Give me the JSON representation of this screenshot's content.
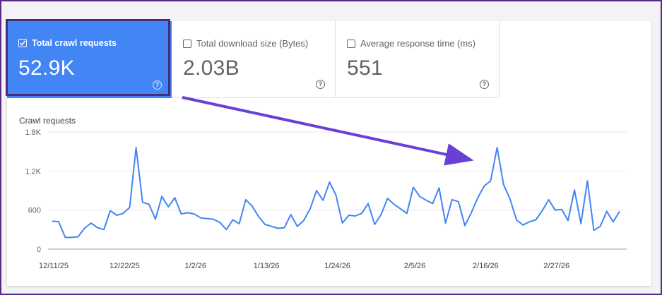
{
  "metrics": [
    {
      "label": "Total crawl requests",
      "value": "52.9K",
      "checked": true
    },
    {
      "label": "Total download size (Bytes)",
      "value": "2.03B",
      "checked": false
    },
    {
      "label": "Average response time (ms)",
      "value": "551",
      "checked": false
    }
  ],
  "help_glyph": "?",
  "colors": {
    "accent": "#4285f4",
    "annotation": "#6a3fd6",
    "frame": "#5b2a86"
  },
  "chart_data": {
    "type": "line",
    "title": "Crawl requests",
    "ylim": [
      0,
      1800
    ],
    "y_ticks": [
      {
        "value": 0,
        "label": "0"
      },
      {
        "value": 600,
        "label": "600"
      },
      {
        "value": 1200,
        "label": "1.2K"
      },
      {
        "value": 1800,
        "label": "1.8K"
      }
    ],
    "x_ticks": [
      {
        "index": 0,
        "label": "12/11/25"
      },
      {
        "index": 11,
        "label": "12/22/25"
      },
      {
        "index": 22,
        "label": "1/2/26"
      },
      {
        "index": 33,
        "label": "1/13/26"
      },
      {
        "index": 44,
        "label": "1/24/26"
      },
      {
        "index": 56,
        "label": "2/5/26"
      },
      {
        "index": 67,
        "label": "2/16/26"
      },
      {
        "index": 78,
        "label": "2/27/26"
      }
    ],
    "grid": true,
    "series": [
      {
        "color": "#4285f4",
        "values": [
          430,
          420,
          180,
          180,
          190,
          320,
          400,
          330,
          300,
          590,
          520,
          550,
          640,
          1560,
          720,
          690,
          460,
          810,
          650,
          790,
          540,
          560,
          540,
          480,
          470,
          460,
          410,
          300,
          450,
          390,
          760,
          660,
          500,
          380,
          350,
          320,
          330,
          530,
          350,
          440,
          620,
          900,
          750,
          1030,
          830,
          400,
          520,
          510,
          550,
          700,
          380,
          530,
          780,
          690,
          620,
          550,
          950,
          810,
          750,
          700,
          940,
          400,
          760,
          730,
          360,
          560,
          790,
          970,
          1050,
          1560,
          990,
          770,
          450,
          370,
          420,
          450,
          590,
          760,
          600,
          610,
          440,
          910,
          390,
          1050,
          290,
          350,
          580,
          420,
          580
        ]
      }
    ]
  }
}
